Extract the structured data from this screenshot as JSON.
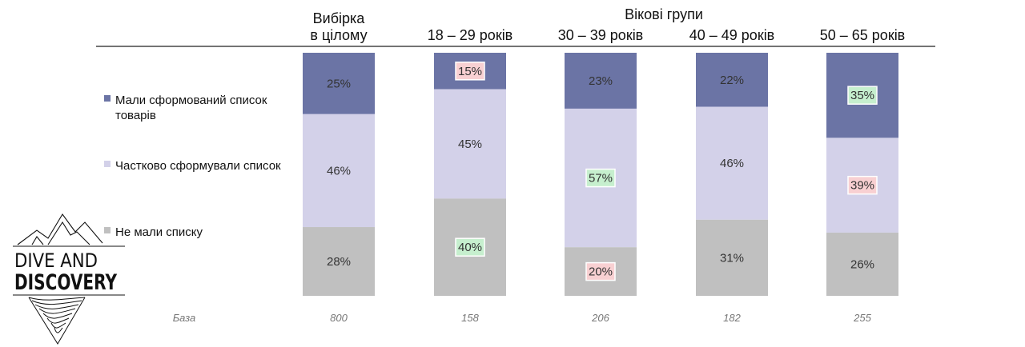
{
  "chart_data": {
    "type": "bar",
    "stacked": true,
    "percent": true,
    "title": "Вікові групи",
    "categories": [
      "Вибірка\nв цілому",
      "18 – 29 років",
      "30 – 39 років",
      "40 – 49 років",
      "50 – 65 років"
    ],
    "series": [
      {
        "name": "Мали сформований список товарів",
        "color": "#6b74a5",
        "values": [
          25,
          15,
          23,
          22,
          35
        ]
      },
      {
        "name": "Частково сформували список",
        "color": "#d3d1e9",
        "values": [
          46,
          45,
          57,
          46,
          39
        ]
      },
      {
        "name": "Не мали списку",
        "color": "#c0c0c0",
        "values": [
          28,
          40,
          20,
          31,
          26
        ]
      }
    ],
    "highlights": [
      {
        "series": 0,
        "category": 1,
        "type": "low"
      },
      {
        "series": 2,
        "category": 1,
        "type": "high"
      },
      {
        "series": 1,
        "category": 2,
        "type": "high"
      },
      {
        "series": 2,
        "category": 2,
        "type": "low"
      },
      {
        "series": 0,
        "category": 4,
        "type": "high"
      },
      {
        "series": 1,
        "category": 4,
        "type": "low"
      }
    ],
    "highlight_colors": {
      "high_fill": "#c6efce",
      "high_text": "#1e6b2a",
      "low_fill": "#f8d0d2",
      "low_text": "#9c1f26"
    },
    "base_label": "База",
    "base_values": [
      800,
      158,
      206,
      182,
      255
    ],
    "value_suffix": "%"
  },
  "logo": {
    "line1": "DIVE AND",
    "line2": "DISCOVERY"
  }
}
